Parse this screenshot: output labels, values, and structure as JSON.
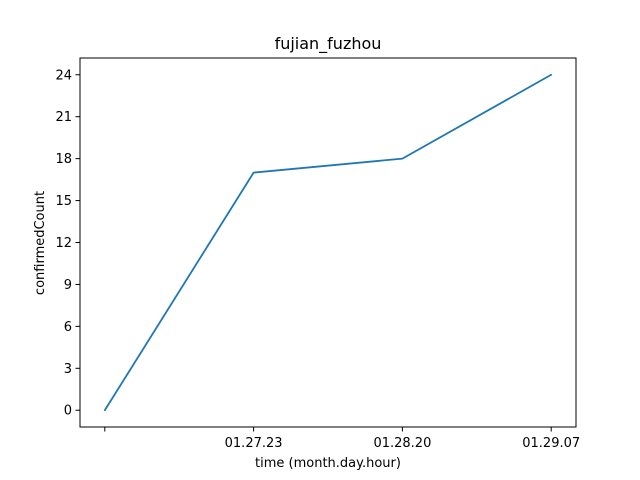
{
  "chart_data": {
    "type": "line",
    "title": "fujian_fuzhou",
    "xlabel": "time (month.day.hour)",
    "ylabel": "confirmedCount",
    "x": [
      "",
      "01.27.23",
      "01.28.20",
      "01.29.07"
    ],
    "series": [
      {
        "values": [
          0,
          17,
          18,
          24
        ],
        "color": "#1f77b4"
      }
    ],
    "ylim": [
      -1.2,
      25.2
    ],
    "yticks": [
      0,
      3,
      6,
      9,
      12,
      15,
      18,
      21,
      24
    ],
    "grid": false
  }
}
